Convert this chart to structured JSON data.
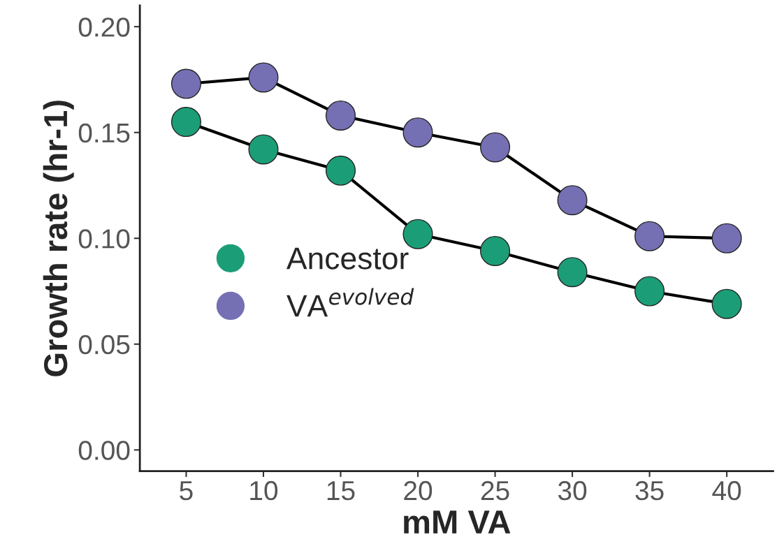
{
  "chart_data": {
    "type": "line",
    "xlabel": "mM VA",
    "ylabel": "Growth rate (hr-1)",
    "categories": [
      "5",
      "10",
      "15",
      "20",
      "25",
      "30",
      "35",
      "40"
    ],
    "series": [
      {
        "name": "Ancestor",
        "color": "#1b9e77",
        "values": [
          0.155,
          0.142,
          0.132,
          0.102,
          0.094,
          0.084,
          0.075,
          0.069
        ]
      },
      {
        "name": "VA$^{evolved}$",
        "color": "#7570b3",
        "values": [
          0.173,
          0.176,
          0.158,
          0.15,
          0.143,
          0.118,
          0.101,
          0.1
        ]
      }
    ],
    "ylim": [
      -0.01,
      0.21
    ],
    "yticks": [
      {
        "value": 0,
        "label": "0.00"
      },
      {
        "value": 0.05,
        "label": "0.05"
      },
      {
        "value": 0.1,
        "label": "0.10"
      },
      {
        "value": 0.15,
        "label": "0.15"
      },
      {
        "value": 0.2,
        "label": "0.20"
      }
    ],
    "marker": "circle",
    "line_style": "solid",
    "grid": false,
    "legend": "left"
  }
}
